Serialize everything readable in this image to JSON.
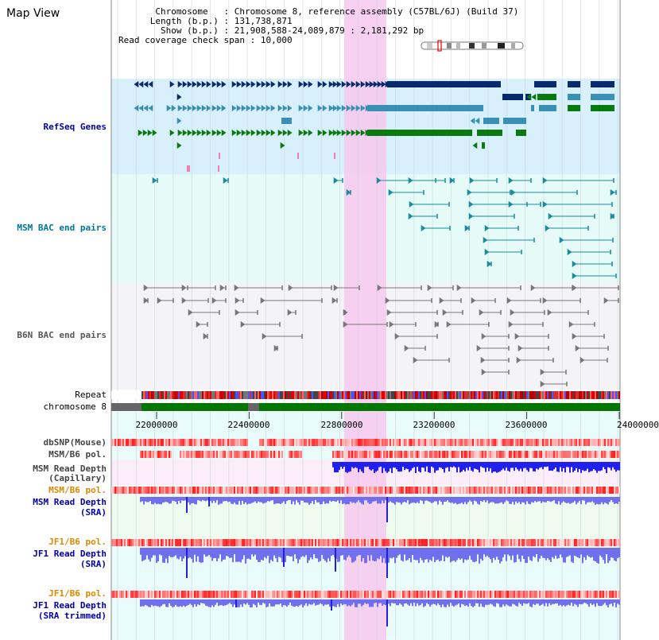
{
  "title": "Map View",
  "header": {
    "chromosome_label": "Chromosome",
    "chromosome_value": "Chromosome 8, reference assembly (C57BL/6J) (Build 37)",
    "length_label": "Length (b.p.)",
    "length_value": "131,738,871",
    "show_label": "Show (b.p.)",
    "show_value": "21,908,588-24,089,879 : 2,181,292 bp",
    "coverage_label": "Read coverage check span",
    "coverage_value": "10,000"
  },
  "tracks": {
    "refseq": {
      "label": "RefSeq Genes",
      "color": "#0000aa"
    },
    "msm_bac": {
      "label": "MSM BAC end pairs",
      "color": "#007799"
    },
    "b6n_bac": {
      "label": "B6N BAC end pairs",
      "color": "#555555"
    },
    "repeat": {
      "label": "Repeat"
    },
    "chromosome": {
      "label": "chromosome 8"
    },
    "dbsnp": {
      "label": "dbSNP(Mouse)"
    },
    "msm_b6_pol_1": {
      "label": "MSM/B6 pol."
    },
    "msm_read_depth_cap": {
      "label": "MSM Read Depth",
      "sub": "(Capillary)"
    },
    "msm_b6_pol_2": {
      "label": "MSM/B6 pol.",
      "color": "#dd8800"
    },
    "msm_read_depth_sra": {
      "label": "MSM Read Depth",
      "sub": "(SRA)",
      "color": "#0000aa"
    },
    "jf1_b6_pol_1": {
      "label": "JF1/B6 pol.",
      "color": "#dd8800"
    },
    "jf1_read_depth_sra": {
      "label": "JF1 Read Depth",
      "sub": "(SRA)",
      "color": "#0000aa"
    },
    "jf1_b6_pol_2": {
      "label": "JF1/B6 pol.",
      "color": "#dd8800"
    },
    "jf1_read_depth_trimmed": {
      "label": "JF1 Read Depth",
      "sub": "(SRA trimmed)",
      "color": "#0000aa"
    }
  },
  "axis": {
    "ticks": [
      "22000000",
      "22400000",
      "22800000",
      "23200000",
      "23600000",
      "24000000"
    ]
  },
  "colors": {
    "highlight": "#f7c8ee",
    "refseq_bg": "#d8f0fb",
    "msm_bg": "#e6fbf7",
    "b6n_bg": "#f4f4f8",
    "gene_dark": "#0a2a6e",
    "gene_mid": "#3a8fb5",
    "gene_green": "#0a7a10",
    "chromosome_green": "#007700",
    "chromosome_gray": "#666666",
    "depth_blue": "#2020dd",
    "depth_light": "#7070ee"
  }
}
